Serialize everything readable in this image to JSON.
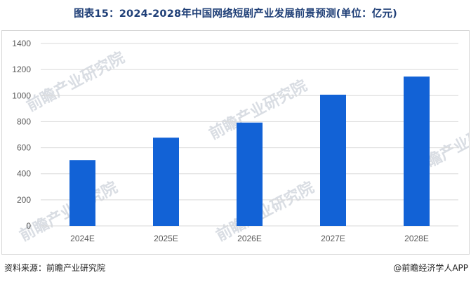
{
  "header": {
    "title": "图表15：2024-2028年中国网络短剧产业发展前景预测(单位：亿元)"
  },
  "footer": {
    "source": "资料来源：前瞻产业研究院",
    "credit": "@前瞻经济学人APP"
  },
  "watermark": {
    "text": "前瞻产业研究院"
  },
  "colors": {
    "bar": "#1262D6",
    "title": "#1f3f77",
    "grid": "#d9d9d9",
    "axis_text": "#595959"
  },
  "chart_data": {
    "type": "bar",
    "title": "图表15：2024-2028年中国网络短剧产业发展前景预测(单位：亿元)",
    "categories": [
      "2024E",
      "2025E",
      "2026E",
      "2027E",
      "2028E"
    ],
    "values": [
      505,
      677,
      793,
      1007,
      1146
    ],
    "ylim": [
      0,
      1400
    ],
    "yticks": [
      0,
      200,
      400,
      600,
      800,
      1000,
      1200,
      1400
    ],
    "grid": true,
    "legend": "none"
  }
}
